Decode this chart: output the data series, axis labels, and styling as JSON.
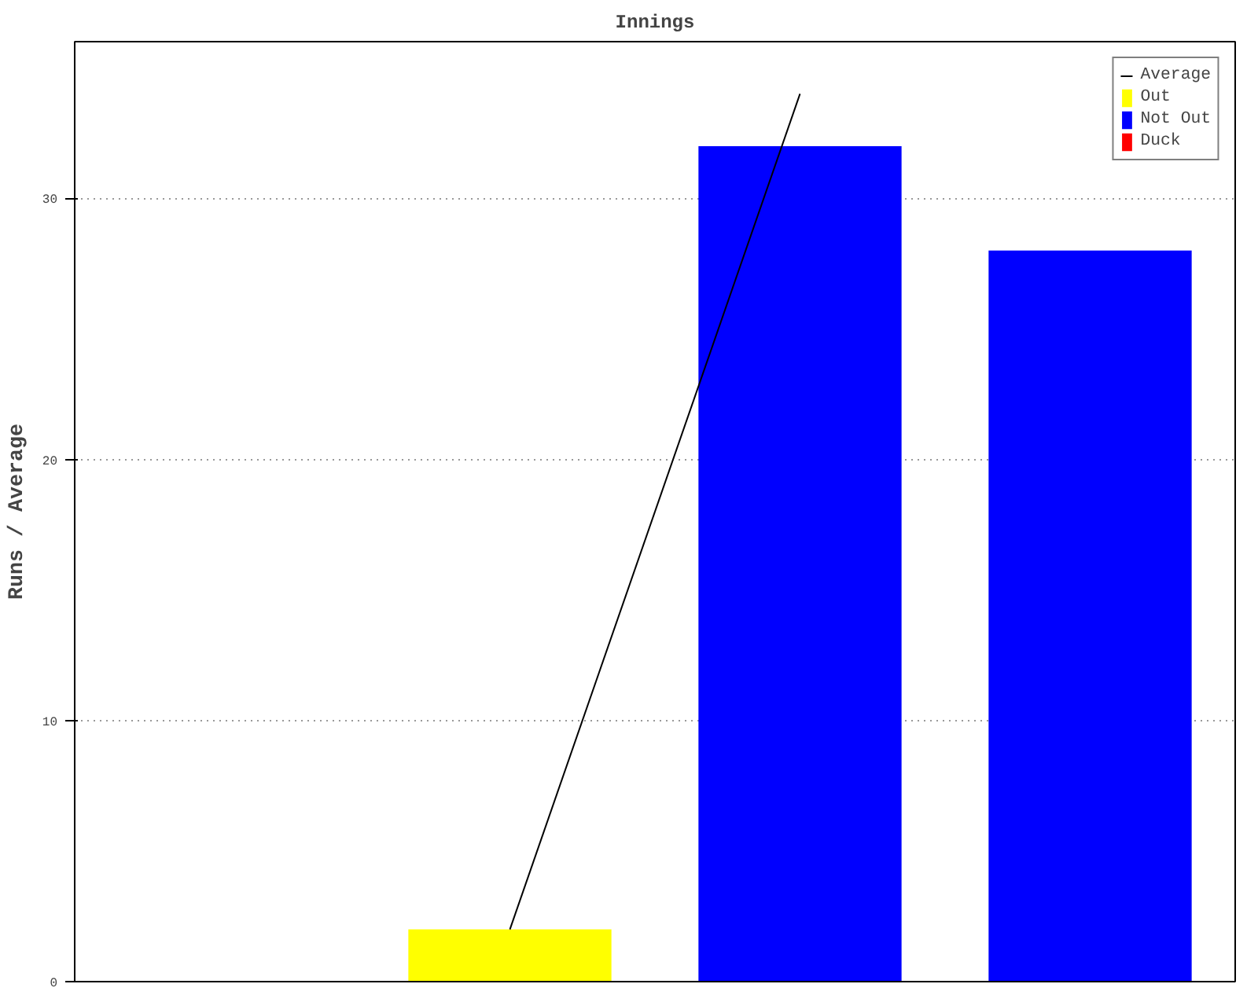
{
  "chart_data": {
    "type": "bar",
    "title": "Innings",
    "ylabel": "Runs / Average",
    "categories": [
      null,
      null,
      null,
      null
    ],
    "ylim": [
      0,
      36
    ],
    "yticks": [
      0,
      10,
      20,
      30
    ],
    "grid": "y",
    "legend": "top right",
    "tick_labels": "y",
    "series": [
      {
        "name": "Average",
        "type": "line",
        "color": "#000000",
        "values": [
          null,
          2,
          34,
          null
        ]
      },
      {
        "name": "Out",
        "color": "#ffff00",
        "values": [
          null,
          2,
          null,
          null
        ]
      },
      {
        "name": "Not Out",
        "color": "#0000ff",
        "values": [
          null,
          null,
          32,
          28
        ]
      },
      {
        "name": "Duck",
        "color": "#ff0000",
        "values": [
          null,
          null,
          null,
          null
        ]
      }
    ]
  }
}
